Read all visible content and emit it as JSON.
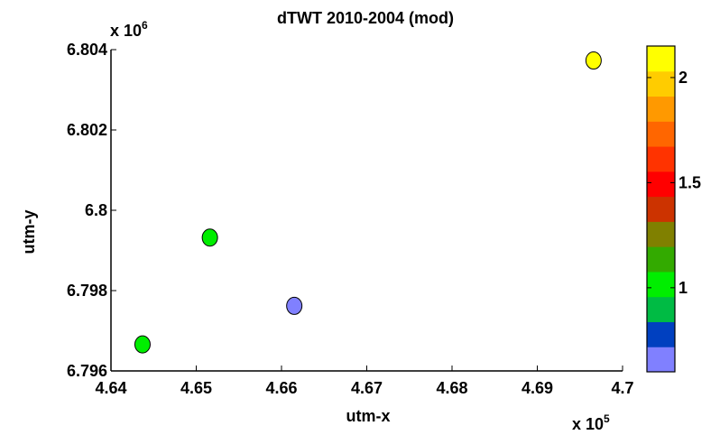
{
  "chart_data": {
    "type": "scatter",
    "title": "dTWT 2010-2004 (mod)",
    "xlabel": "utm-x",
    "ylabel": "utm-y",
    "x_exponent_label": {
      "base": "x 10",
      "exp": "5"
    },
    "y_exponent_label": {
      "base": "x 10",
      "exp": "6"
    },
    "xlim": [
      4.64,
      4.7
    ],
    "ylim": [
      6.796,
      6.804
    ],
    "x_ticks": [
      "4.64",
      "4.65",
      "4.66",
      "4.67",
      "4.68",
      "4.69",
      "4.7"
    ],
    "x_tick_values": [
      4.64,
      4.65,
      4.66,
      4.67,
      4.68,
      4.69,
      4.7
    ],
    "y_ticks": [
      "6.796",
      "6.798",
      "6.8",
      "6.802",
      "6.804"
    ],
    "y_tick_values": [
      6.796,
      6.798,
      6.8,
      6.802,
      6.804
    ],
    "points": [
      {
        "x": 4.6437,
        "y": 6.79666,
        "color": "#00ee00"
      },
      {
        "x": 4.6516,
        "y": 6.79932,
        "color": "#00ee00"
      },
      {
        "x": 4.6615,
        "y": 6.79762,
        "color": "#8080ff"
      },
      {
        "x": 4.6966,
        "y": 6.80373,
        "color": "#ffff00"
      }
    ],
    "colorbar": {
      "clim": [
        0.6,
        2.15
      ],
      "tick_labels": [
        "1",
        "1.5",
        "2"
      ],
      "tick_values": [
        1.0,
        1.5,
        2.0
      ],
      "colors": [
        "#8080ff",
        "#0040c0",
        "#00bb44",
        "#00ee00",
        "#33aa00",
        "#808000",
        "#cc3300",
        "#ff0000",
        "#ff3300",
        "#ff6600",
        "#ff9900",
        "#ffcc00",
        "#ffff00"
      ]
    },
    "grid": false,
    "legend": "none"
  }
}
